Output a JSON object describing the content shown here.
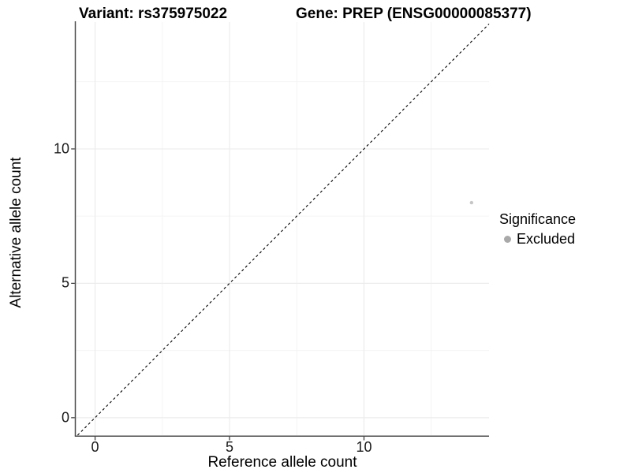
{
  "figure": {
    "title_left": "Variant: rs375975022",
    "title_right": "Gene: PREP (ENSG00000085377)"
  },
  "chart_data": {
    "type": "scatter",
    "title_left": "Variant: rs375975022",
    "title_right": "Gene: PREP (ENSG00000085377)",
    "xlabel": "Reference allele count",
    "ylabel": "Alternative allele count",
    "xlim": [
      -0.72,
      14.65
    ],
    "ylim": [
      -0.65,
      14.72
    ],
    "x_major_ticks": [
      0,
      5,
      10
    ],
    "y_major_ticks": [
      0,
      5,
      10
    ],
    "x_minor_gridlines": [
      2.5,
      7.5,
      12.5
    ],
    "y_minor_gridlines": [
      2.5,
      7.5,
      12.5
    ],
    "grid": true,
    "points": [
      {
        "x": 14,
        "y": 8,
        "series": "Excluded"
      }
    ],
    "reference_line": {
      "style": "dashed",
      "slope": 1,
      "intercept": 0
    },
    "legend": {
      "title": "Significance",
      "position": "right",
      "items": [
        {
          "label": "Excluded",
          "color": "#a9a9a9",
          "marker": "circle"
        }
      ]
    },
    "colors": {
      "point": "#c6c6c6",
      "axis_line": "#4d4d4d",
      "tick_mark": "#333333",
      "grid_major": "#ececec",
      "grid_minor": "#f4f4f4",
      "reference_line": "#000000"
    }
  }
}
